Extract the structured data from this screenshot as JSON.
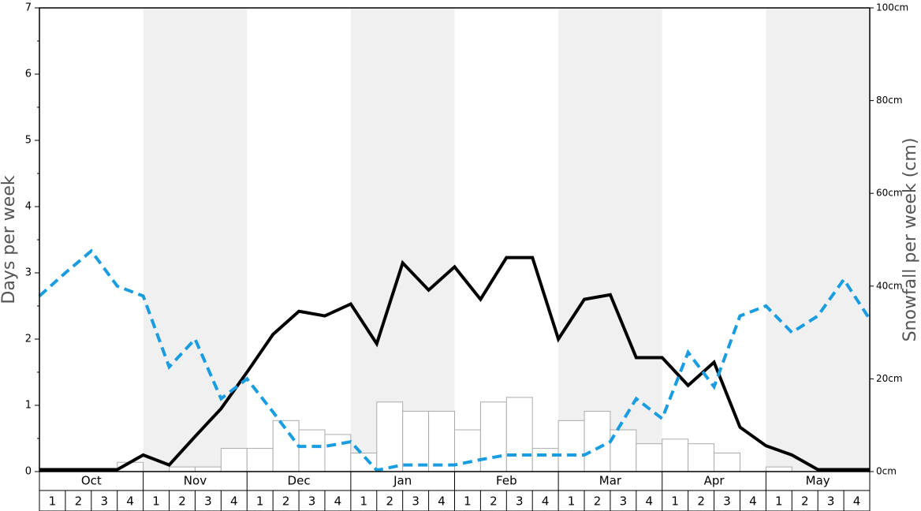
{
  "chart_data": {
    "type": "combo",
    "ylabel": "Days per week",
    "y2label": "Snowfall per week (cm)",
    "months": [
      "Oct",
      "Nov",
      "Dec",
      "Jan",
      "Feb",
      "Mar",
      "Apr",
      "May"
    ],
    "weeks": [
      "1",
      "2",
      "3",
      "4"
    ],
    "ylim": [
      0,
      7
    ],
    "yticks": [
      0,
      1,
      2,
      3,
      4,
      5,
      6,
      7
    ],
    "y2lim": [
      0,
      100
    ],
    "y2ticks": [
      {
        "value": 0,
        "label": "0cm"
      },
      {
        "value": 20,
        "label": "20cm"
      },
      {
        "value": 40,
        "label": "40cm"
      },
      {
        "value": 60,
        "label": "60cm"
      },
      {
        "value": 80,
        "label": "80cm"
      },
      {
        "value": 100,
        "label": "100cm"
      }
    ],
    "bars": {
      "color": "#ffffff",
      "axis": "y2",
      "values": [
        0,
        0,
        0,
        2,
        0,
        1,
        1,
        5,
        5,
        11,
        9,
        8,
        4,
        15,
        13,
        13,
        9,
        15,
        16,
        5,
        11,
        13,
        9,
        6,
        7,
        6,
        4,
        0,
        1,
        0,
        0,
        0
      ]
    },
    "series": [
      {
        "color": "#000000",
        "dashed": false,
        "values": [
          0.03,
          0.03,
          0.03,
          0.03,
          0.25,
          0.1,
          0.53,
          0.95,
          1.5,
          2.07,
          2.42,
          2.35,
          2.53,
          1.93,
          3.15,
          2.74,
          3.09,
          2.6,
          3.23,
          3.23,
          2.0,
          2.6,
          2.67,
          1.72,
          1.72,
          1.3,
          1.65,
          0.67,
          0.39,
          0.25,
          0.03,
          0.03,
          0.03
        ]
      },
      {
        "color": "#1a9de0",
        "dashed": true,
        "values": [
          2.65,
          3.0,
          3.33,
          2.8,
          2.65,
          1.58,
          2.0,
          1.1,
          1.4,
          0.9,
          0.38,
          0.38,
          0.45,
          0.02,
          0.1,
          0.1,
          0.1,
          0.18,
          0.25,
          0.25,
          0.25,
          0.25,
          0.45,
          1.1,
          0.8,
          1.8,
          1.28,
          2.35,
          2.5,
          2.1,
          2.35,
          2.9,
          2.3
        ]
      }
    ]
  }
}
